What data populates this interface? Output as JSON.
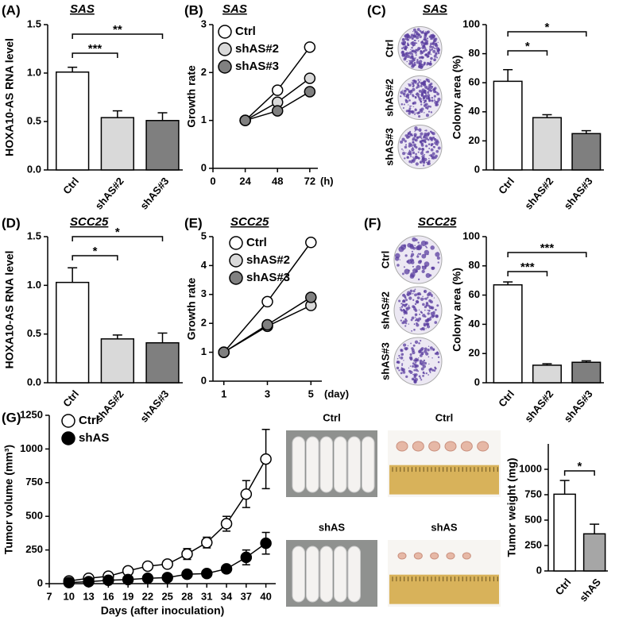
{
  "chart_data": [
    {
      "type": "bar",
      "label": "(A)",
      "title": "SAS",
      "ylabel": "HOXA10-AS RNA level",
      "categories": [
        "Ctrl",
        "shAS#2",
        "shAS#3"
      ],
      "values": [
        1.01,
        0.54,
        0.51
      ],
      "errors": [
        0.05,
        0.07,
        0.08
      ],
      "colors": [
        "#ffffff",
        "#d9d9d9",
        "#7f7f7f"
      ],
      "ylim": [
        0,
        1.5
      ],
      "yticks": [
        {
          "value": 0,
          "label": "0.0"
        },
        0.5,
        {
          "value": 1,
          "label": "1.0"
        },
        1.5
      ],
      "brackets": [
        {
          "label": "***",
          "between": [
            "Ctrl",
            "shAS#2"
          ]
        },
        {
          "label": "**",
          "between": [
            "Ctrl",
            "shAS#3"
          ]
        }
      ]
    },
    {
      "type": "line",
      "label": "(B)",
      "title": "SAS",
      "ylabel": "Growth rate",
      "x": [
        24,
        48,
        72
      ],
      "x_unit": "(h)",
      "xlim": [
        0,
        78
      ],
      "xticks": [
        0,
        24,
        48,
        72
      ],
      "ylim": [
        0,
        3
      ],
      "yticks": [
        0,
        1,
        2,
        3
      ],
      "legend": "upper left",
      "series": [
        {
          "name": "Ctrl",
          "color": "#ffffff",
          "values": [
            1,
            1.63,
            2.53
          ]
        },
        {
          "name": "shAS#2",
          "color": "#d9d9d9",
          "values": [
            1,
            1.38,
            1.88
          ]
        },
        {
          "name": "shAS#3",
          "color": "#808080",
          "values": [
            1,
            1.2,
            1.6
          ]
        }
      ]
    },
    {
      "type": "bar",
      "label": "(C)",
      "title": "SAS",
      "plate_labels": [
        "Ctrl",
        "shAS#2",
        "shAS#3"
      ],
      "ylabel": "Colony area (%)",
      "categories": [
        "Ctrl",
        "shAS#2",
        "shAS#3"
      ],
      "values": [
        61,
        36,
        25
      ],
      "errors": [
        8,
        2,
        2
      ],
      "colors": [
        "#ffffff",
        "#d9d9d9",
        "#7f7f7f"
      ],
      "ylim": [
        0,
        100
      ],
      "yticks": [
        0,
        20,
        40,
        60,
        80,
        100
      ],
      "brackets": [
        {
          "label": "*",
          "between": [
            "Ctrl",
            "shAS#2"
          ]
        },
        {
          "label": "*",
          "between": [
            "Ctrl",
            "shAS#3"
          ]
        }
      ]
    },
    {
      "type": "bar",
      "label": "(D)",
      "title": "SCC25",
      "ylabel": "HOXA10-AS RNA level",
      "categories": [
        "Ctrl",
        "shAS#2",
        "shAS#3"
      ],
      "values": [
        1.03,
        0.45,
        0.41
      ],
      "errors": [
        0.15,
        0.04,
        0.1
      ],
      "colors": [
        "#ffffff",
        "#d9d9d9",
        "#7f7f7f"
      ],
      "ylim": [
        0,
        1.5
      ],
      "yticks": [
        {
          "value": 0,
          "label": "0.0"
        },
        0.5,
        {
          "value": 1,
          "label": "1.0"
        },
        1.5
      ],
      "brackets": [
        {
          "label": "*",
          "between": [
            "Ctrl",
            "shAS#2"
          ]
        },
        {
          "label": "*",
          "between": [
            "Ctrl",
            "shAS#3"
          ]
        }
      ]
    },
    {
      "type": "line",
      "label": "(E)",
      "title": "SCC25",
      "ylabel": "Growth rate",
      "x": [
        1,
        3,
        5
      ],
      "x_unit": "(day)",
      "xlim": [
        0.5,
        5.5
      ],
      "xticks": [
        1,
        3,
        5
      ],
      "ylim": [
        0,
        5
      ],
      "yticks": [
        0,
        1,
        2,
        3,
        4,
        5
      ],
      "legend": "upper left",
      "series": [
        {
          "name": "Ctrl",
          "color": "#ffffff",
          "values": [
            1,
            2.75,
            4.8
          ]
        },
        {
          "name": "shAS#2",
          "color": "#d9d9d9",
          "values": [
            1,
            1.9,
            2.62
          ]
        },
        {
          "name": "shAS#3",
          "color": "#808080",
          "values": [
            1,
            1.95,
            2.9
          ]
        }
      ]
    },
    {
      "type": "bar",
      "label": "(F)",
      "title": "SCC25",
      "plate_labels": [
        "Ctrl",
        "shAS#2",
        "shAS#3"
      ],
      "ylabel": "Colony area (%)",
      "categories": [
        "Ctrl",
        "shAS#2",
        "shAS#3"
      ],
      "values": [
        67,
        12,
        14
      ],
      "errors": [
        2,
        1,
        1
      ],
      "colors": [
        "#ffffff",
        "#d9d9d9",
        "#7f7f7f"
      ],
      "ylim": [
        0,
        100
      ],
      "yticks": [
        0,
        20,
        40,
        60,
        80,
        100
      ],
      "brackets": [
        {
          "label": "***",
          "between": [
            "Ctrl",
            "shAS#2"
          ]
        },
        {
          "label": "***",
          "between": [
            "Ctrl",
            "shAS#3"
          ]
        }
      ]
    },
    {
      "type": "line",
      "label": "(G)",
      "ylabel": "Tumor volume (mm³)",
      "xlabel": "Days (after inoculation)",
      "x": [
        10,
        13,
        16,
        19,
        22,
        25,
        28,
        31,
        34,
        37,
        40
      ],
      "xlim": [
        7,
        41.5
      ],
      "xticks": [
        7,
        10,
        13,
        16,
        19,
        22,
        25,
        28,
        31,
        34,
        37,
        40
      ],
      "ylim": [
        0,
        1250
      ],
      "yticks": [
        0,
        250,
        500,
        750,
        1000,
        1250
      ],
      "legend": "upper left",
      "photo_labels": [
        "Ctrl",
        "Ctrl",
        "shAS",
        "shAS"
      ],
      "series": [
        {
          "name": "Ctrl",
          "color": "#ffffff",
          "values": [
            20,
            40,
            55,
            95,
            130,
            145,
            220,
            305,
            445,
            665,
            925
          ],
          "errors": [
            10,
            12,
            15,
            20,
            20,
            20,
            40,
            40,
            55,
            100,
            220
          ]
        },
        {
          "name": "shAS",
          "color": "#000000",
          "values": [
            8,
            15,
            25,
            30,
            40,
            45,
            70,
            75,
            110,
            195,
            300
          ],
          "errors": [
            5,
            5,
            8,
            10,
            10,
            10,
            15,
            20,
            25,
            55,
            80
          ]
        }
      ]
    },
    {
      "type": "bar",
      "ylabel": "Tumor weight (mg)",
      "categories": [
        "Ctrl",
        "shAS"
      ],
      "values": [
        755,
        365
      ],
      "errors": [
        135,
        95
      ],
      "colors": [
        "#ffffff",
        "#a6a6a6"
      ],
      "ylim": [
        0,
        1250
      ],
      "yticks": [
        0,
        250,
        500,
        750,
        1000
      ],
      "brackets": [
        {
          "label": "*",
          "between": [
            "Ctrl",
            "shAS"
          ]
        }
      ]
    }
  ]
}
